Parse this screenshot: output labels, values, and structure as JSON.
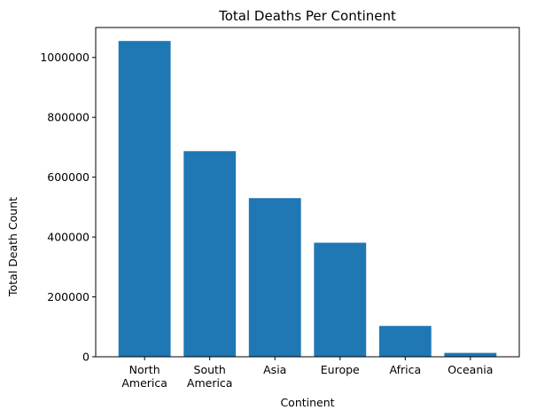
{
  "chart_data": {
    "type": "bar",
    "title": "Total Deaths Per Continent",
    "xlabel": "Continent",
    "ylabel": "Total Death Count",
    "categories": [
      "North America",
      "South America",
      "Asia",
      "Europe",
      "Africa",
      "Oceania"
    ],
    "category_lines": [
      [
        "North",
        "America"
      ],
      [
        "South",
        "America"
      ],
      [
        "Asia"
      ],
      [
        "Europe"
      ],
      [
        "Africa"
      ],
      [
        "Oceania"
      ]
    ],
    "values": [
      1055000,
      687000,
      530000,
      381000,
      103000,
      13000
    ],
    "ylim": [
      0,
      1100000
    ],
    "yticks": [
      0,
      200000,
      400000,
      600000,
      800000,
      1000000
    ],
    "ytick_labels": [
      "0",
      "200000",
      "400000",
      "600000",
      "800000",
      "1000000"
    ],
    "bar_color": "#1f77b4",
    "grid": false,
    "legend": "none"
  }
}
